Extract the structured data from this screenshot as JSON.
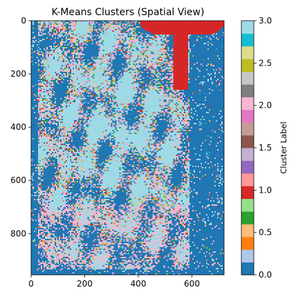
{
  "chart_data": {
    "type": "heatmap",
    "title": "K-Means Clusters (Spatial View)",
    "xlabel": "",
    "ylabel": "",
    "x_range": [
      0,
      720
    ],
    "y_range": [
      955,
      0
    ],
    "x_ticks": [
      0,
      200,
      400,
      600
    ],
    "y_ticks": [
      0,
      200,
      400,
      600,
      800
    ],
    "colormap": "tab20",
    "colormap_colors": [
      "#1f77b4",
      "#aec7e8",
      "#ff7f0e",
      "#ffbb78",
      "#2ca02c",
      "#98df8a",
      "#d62728",
      "#ff9896",
      "#9467bd",
      "#c5b0d5",
      "#8c564b",
      "#c49c94",
      "#e377c2",
      "#f7b6d2",
      "#7f7f7f",
      "#c7c7c7",
      "#bcbd22",
      "#dbdb8d",
      "#17becf",
      "#9edae5"
    ],
    "colorbar": {
      "label": "Cluster Label",
      "range": [
        0.0,
        3.0
      ],
      "ticks": [
        "0.0",
        "0.5",
        "1.0",
        "1.5",
        "2.0",
        "2.5",
        "3.0"
      ]
    },
    "cluster_labels": [
      0,
      1,
      2,
      3
    ],
    "cluster_colors": {
      "0": "#1f77b4",
      "1": "#d62728",
      "2": "#f7b6d2",
      "3": "#9edae5"
    },
    "grid": false
  }
}
